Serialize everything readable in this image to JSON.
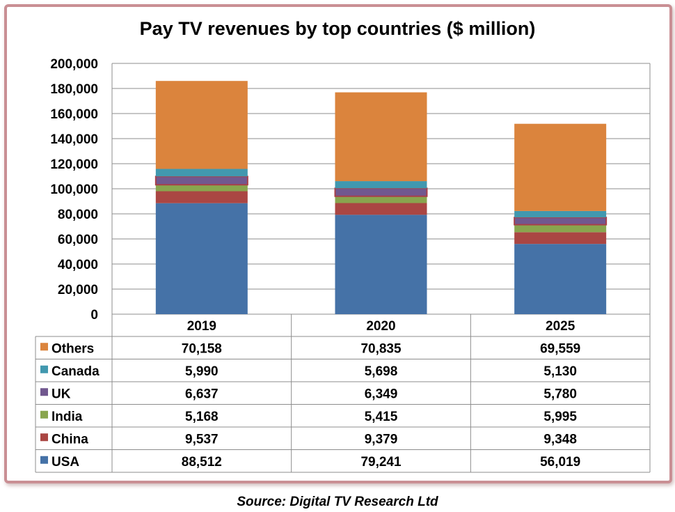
{
  "source_note": "Source: Digital TV Research Ltd",
  "chart_data": {
    "type": "bar",
    "stacked": true,
    "title": "Pay TV revenues by top countries ($ million)",
    "categories": [
      "2019",
      "2020",
      "2025"
    ],
    "ylim": [
      0,
      200000
    ],
    "yticks": [
      "0",
      "20,000",
      "40,000",
      "60,000",
      "80,000",
      "100,000",
      "120,000",
      "140,000",
      "160,000",
      "180,000",
      "200,000"
    ],
    "grid": true,
    "legend_placement": "data-table",
    "series": [
      {
        "name": "USA",
        "color": "#4572a7",
        "values": [
          88512,
          79241,
          56019
        ],
        "labels": [
          "88,512",
          "79,241",
          "56,019"
        ]
      },
      {
        "name": "China",
        "color": "#aa4643",
        "values": [
          9537,
          9379,
          9348
        ],
        "labels": [
          "9,537",
          "9,379",
          "9,348"
        ]
      },
      {
        "name": "India",
        "color": "#89a54e",
        "values": [
          5168,
          5415,
          5995
        ],
        "labels": [
          "5,168",
          "5,415",
          "5,995"
        ]
      },
      {
        "name": "UK",
        "color": "#71588f",
        "values": [
          6637,
          6349,
          5780
        ],
        "labels": [
          "6,637",
          "6,349",
          "5,780"
        ]
      },
      {
        "name": "Canada",
        "color": "#4198af",
        "values": [
          5990,
          5698,
          5130
        ],
        "labels": [
          "5,990",
          "5,698",
          "5,130"
        ]
      },
      {
        "name": "Others",
        "color": "#db843d",
        "values": [
          70158,
          70835,
          69559
        ],
        "labels": [
          "70,158",
          "70,835",
          "69,559"
        ]
      }
    ]
  }
}
